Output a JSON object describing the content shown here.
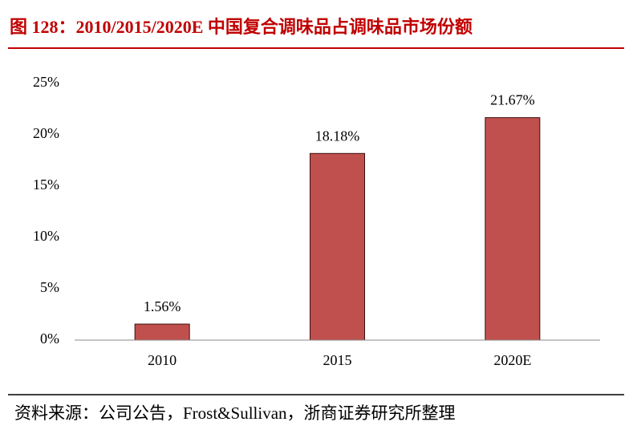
{
  "chart_data": {
    "type": "bar",
    "title": "图 128：2010/2015/2020E 中国复合调味品占调味品市场份额",
    "categories": [
      "2010",
      "2015",
      "2020E"
    ],
    "values": [
      1.56,
      18.18,
      21.67
    ],
    "value_labels": [
      "1.56%",
      "18.18%",
      "21.67%"
    ],
    "color": "#c0504d",
    "ylim": [
      0,
      25
    ],
    "yticks": [
      {
        "value": 0,
        "label": "0%"
      },
      {
        "value": 5,
        "label": "5%"
      },
      {
        "value": 10,
        "label": "10%"
      },
      {
        "value": 15,
        "label": "15%"
      },
      {
        "value": 20,
        "label": "20%"
      },
      {
        "value": 25,
        "label": "25%"
      }
    ],
    "source": "资料来源：公司公告，Frost&Sullivan，浙商证券研究所整理"
  }
}
